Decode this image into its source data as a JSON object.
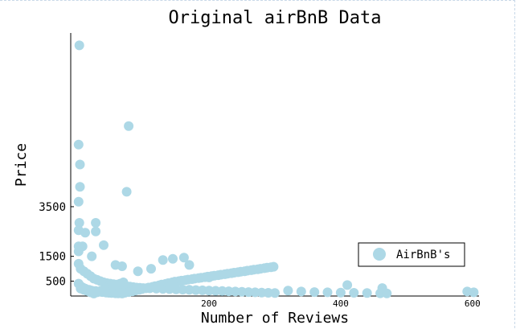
{
  "chart_data": {
    "type": "scatter",
    "title": "Original airBnB Data",
    "xlabel": "Number of Reviews",
    "ylabel": "Price",
    "xlim": [
      -10,
      610
    ],
    "ylim": [
      -100,
      10500
    ],
    "xticks": [
      200,
      400,
      600
    ],
    "yticks": [
      500,
      1500,
      3500
    ],
    "legend_position": "right",
    "grid": false,
    "marker_color": "#add8e6",
    "series": [
      {
        "name": "AirBnB's",
        "points": [
          [
            3,
            10000
          ],
          [
            2,
            6000
          ],
          [
            4,
            5200
          ],
          [
            4,
            4300
          ],
          [
            2,
            3700
          ],
          [
            78,
            6750
          ],
          [
            75,
            4100
          ],
          [
            3,
            2850
          ],
          [
            2,
            2550
          ],
          [
            28,
            2850
          ],
          [
            12,
            2450
          ],
          [
            28,
            2500
          ],
          [
            40,
            1950
          ],
          [
            2,
            1900
          ],
          [
            8,
            1900
          ],
          [
            2,
            1700
          ],
          [
            22,
            1500
          ],
          [
            162,
            1450
          ],
          [
            145,
            1400
          ],
          [
            130,
            1350
          ],
          [
            58,
            1150
          ],
          [
            68,
            1100
          ],
          [
            112,
            1000
          ],
          [
            92,
            900
          ],
          [
            170,
            1150
          ],
          [
            200,
            650
          ],
          [
            410,
            340
          ],
          [
            463,
            220
          ],
          [
            592,
            80
          ],
          [
            602,
            50
          ],
          [
            2,
            1200
          ],
          [
            5,
            1000
          ],
          [
            10,
            900
          ],
          [
            15,
            800
          ],
          [
            20,
            700
          ],
          [
            25,
            600
          ],
          [
            30,
            550
          ],
          [
            35,
            500
          ],
          [
            40,
            450
          ],
          [
            45,
            420
          ],
          [
            50,
            400
          ],
          [
            55,
            380
          ],
          [
            60,
            360
          ],
          [
            65,
            340
          ],
          [
            70,
            320
          ],
          [
            75,
            300
          ],
          [
            80,
            280
          ],
          [
            85,
            260
          ],
          [
            90,
            240
          ],
          [
            95,
            230
          ],
          [
            100,
            220
          ],
          [
            110,
            210
          ],
          [
            120,
            200
          ],
          [
            130,
            190
          ],
          [
            140,
            180
          ],
          [
            150,
            170
          ],
          [
            160,
            160
          ],
          [
            170,
            150
          ],
          [
            180,
            140
          ],
          [
            190,
            130
          ],
          [
            200,
            120
          ],
          [
            210,
            110
          ],
          [
            220,
            100
          ],
          [
            230,
            90
          ],
          [
            240,
            80
          ],
          [
            250,
            70
          ],
          [
            260,
            60
          ],
          [
            270,
            50
          ],
          [
            280,
            40
          ],
          [
            290,
            30
          ],
          [
            300,
            20
          ],
          [
            320,
            120
          ],
          [
            340,
            80
          ],
          [
            360,
            60
          ],
          [
            380,
            50
          ],
          [
            400,
            40
          ],
          [
            420,
            30
          ],
          [
            440,
            20
          ],
          [
            460,
            10
          ],
          [
            470,
            5
          ],
          [
            2,
            400
          ],
          [
            5,
            300
          ],
          [
            8,
            250
          ],
          [
            12,
            200
          ],
          [
            18,
            150
          ],
          [
            22,
            120
          ],
          [
            28,
            100
          ],
          [
            33,
            80
          ],
          [
            38,
            60
          ],
          [
            44,
            40
          ],
          [
            48,
            30
          ],
          [
            52,
            20
          ],
          [
            58,
            10
          ],
          [
            62,
            5
          ],
          [
            68,
            0
          ],
          [
            72,
            30
          ],
          [
            78,
            60
          ],
          [
            84,
            90
          ],
          [
            88,
            120
          ],
          [
            94,
            150
          ],
          [
            98,
            180
          ],
          [
            104,
            210
          ],
          [
            108,
            240
          ],
          [
            114,
            270
          ],
          [
            118,
            300
          ],
          [
            124,
            330
          ],
          [
            128,
            360
          ],
          [
            134,
            390
          ],
          [
            138,
            420
          ],
          [
            144,
            450
          ],
          [
            148,
            480
          ],
          [
            154,
            500
          ],
          [
            158,
            520
          ],
          [
            164,
            540
          ],
          [
            168,
            560
          ],
          [
            174,
            580
          ],
          [
            178,
            600
          ],
          [
            184,
            620
          ],
          [
            188,
            640
          ],
          [
            194,
            660
          ],
          [
            198,
            680
          ],
          [
            204,
            700
          ],
          [
            208,
            720
          ],
          [
            214,
            740
          ],
          [
            218,
            760
          ],
          [
            224,
            780
          ],
          [
            228,
            800
          ],
          [
            234,
            820
          ],
          [
            238,
            840
          ],
          [
            244,
            860
          ],
          [
            248,
            880
          ],
          [
            254,
            900
          ],
          [
            258,
            920
          ],
          [
            264,
            940
          ],
          [
            268,
            960
          ],
          [
            274,
            980
          ],
          [
            278,
            1000
          ],
          [
            284,
            1020
          ],
          [
            288,
            1040
          ],
          [
            294,
            1060
          ],
          [
            298,
            1080
          ],
          [
            5,
            200
          ],
          [
            10,
            150
          ],
          [
            15,
            100
          ],
          [
            20,
            50
          ],
          [
            25,
            0
          ],
          [
            30,
            50
          ],
          [
            35,
            100
          ],
          [
            40,
            150
          ],
          [
            45,
            200
          ],
          [
            50,
            250
          ],
          [
            55,
            300
          ],
          [
            60,
            350
          ],
          [
            65,
            400
          ],
          [
            70,
            450
          ]
        ]
      }
    ]
  }
}
